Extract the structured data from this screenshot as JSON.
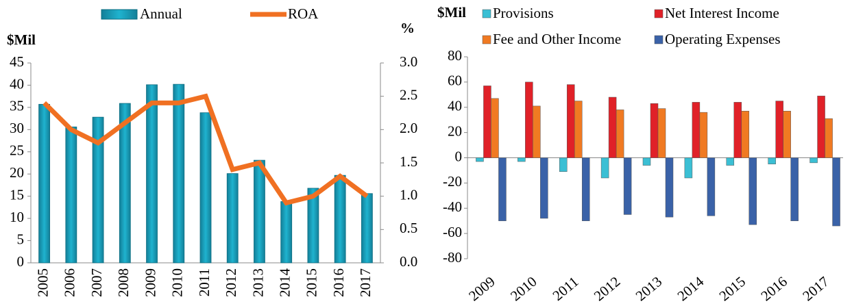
{
  "chart_data": [
    {
      "type": "bar_line",
      "y_label": "$Mil",
      "y2_label": "%",
      "categories": [
        "2005",
        "2006",
        "2007",
        "2008",
        "2009",
        "2010",
        "2011",
        "2012",
        "2013",
        "2014",
        "2015",
        "2016",
        "2017"
      ],
      "series": [
        {
          "name": "Annual",
          "color": "#1fb3cf",
          "values": [
            35.7,
            30.6,
            32.8,
            35.9,
            40.1,
            40.2,
            33.8,
            20.1,
            23.1,
            13.8,
            16.8,
            19.7,
            15.6
          ]
        },
        {
          "name": "ROA",
          "color": "#f07022",
          "axis": "y2",
          "values": [
            2.4,
            2.0,
            1.8,
            2.1,
            2.4,
            2.4,
            2.5,
            1.4,
            1.5,
            0.9,
            1.0,
            1.3,
            1.0
          ]
        }
      ],
      "ylim": [
        0,
        45
      ],
      "yticks": [
        0,
        5,
        10,
        15,
        20,
        25,
        30,
        35,
        40,
        45
      ],
      "y2lim": [
        0,
        3
      ],
      "y2ticks": [
        {
          "value": 0,
          "label": "0.0"
        },
        {
          "value": 0.5,
          "label": "0.5"
        },
        {
          "value": 1,
          "label": "1.0"
        },
        {
          "value": 1.5,
          "label": "1.5"
        },
        {
          "value": 2,
          "label": "2.0"
        },
        {
          "value": 2.5,
          "label": "2.5"
        },
        {
          "value": 3,
          "label": "3.0"
        }
      ]
    },
    {
      "type": "bar",
      "y_label": "$Mil",
      "categories": [
        "2009",
        "2010",
        "2011",
        "2012",
        "2013",
        "2014",
        "2015",
        "2016",
        "2017"
      ],
      "series": [
        {
          "name": "Provisions",
          "color": "#3bbfd4",
          "values": [
            -3,
            -3,
            -11,
            -16,
            -6,
            -16,
            -6,
            -5,
            -4
          ]
        },
        {
          "name": "Net Interest Income",
          "color": "#e02128",
          "values": [
            57,
            60,
            58,
            48,
            43,
            44,
            44,
            45,
            49
          ]
        },
        {
          "name": "Fee and Other Income",
          "color": "#f07a22",
          "values": [
            47,
            41,
            45,
            38,
            39,
            36,
            37,
            37,
            31
          ]
        },
        {
          "name": "Operating Expenses",
          "color": "#3a62a8",
          "values": [
            -50,
            -48,
            -50,
            -45,
            -47,
            -46,
            -53,
            -50,
            -54
          ]
        }
      ],
      "ylim": [
        -80,
        80
      ],
      "yticks": [
        -80,
        -60,
        -40,
        -20,
        0,
        20,
        40,
        60,
        80
      ]
    }
  ]
}
